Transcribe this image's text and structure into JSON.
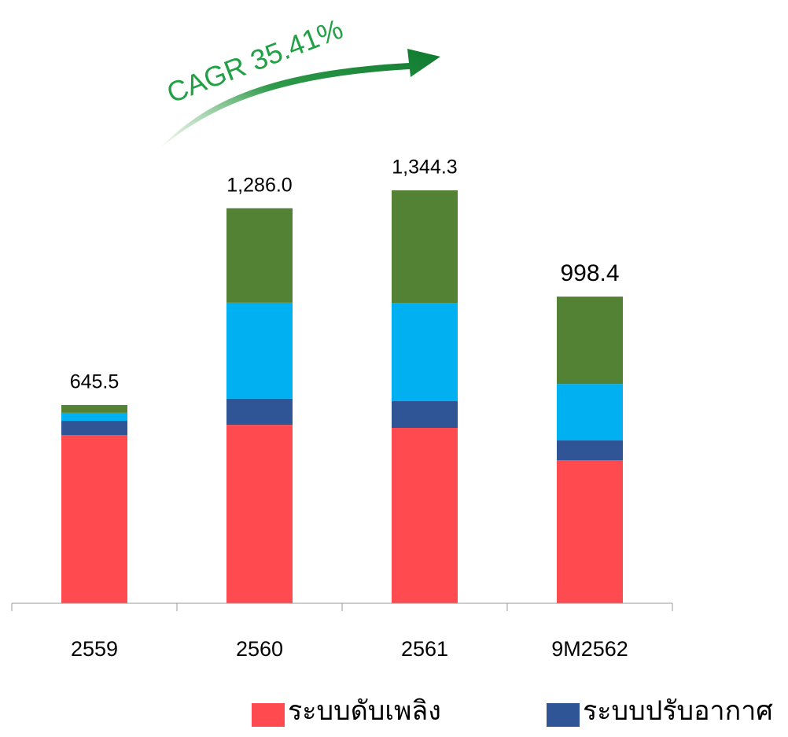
{
  "chart_data": {
    "type": "stacked_bar",
    "annotation": "CAGR 35.41%",
    "categories": [
      "2559",
      "2560",
      "2561",
      "9M2562"
    ],
    "series": [
      {
        "name": "ระบบดับเพลิง",
        "color": "#ff4a4f",
        "values": [
          548,
          581,
          571,
          466
        ]
      },
      {
        "name": "ระบบปรับอากาศ",
        "color": "#2f5597",
        "values": [
          46,
          85,
          87,
          64
        ]
      },
      {
        "color": "#00b0f0",
        "values": [
          26,
          312.5,
          320,
          184
        ]
      },
      {
        "color": "#548235",
        "values": [
          25.5,
          307.5,
          366.3,
          284.4
        ]
      }
    ],
    "totals": [
      645.5,
      1286.0,
      1344.3,
      998.4
    ],
    "total_labels": [
      "645.5",
      "1,286.0",
      "1,344.3",
      "998.4"
    ],
    "legend": "bottom"
  }
}
